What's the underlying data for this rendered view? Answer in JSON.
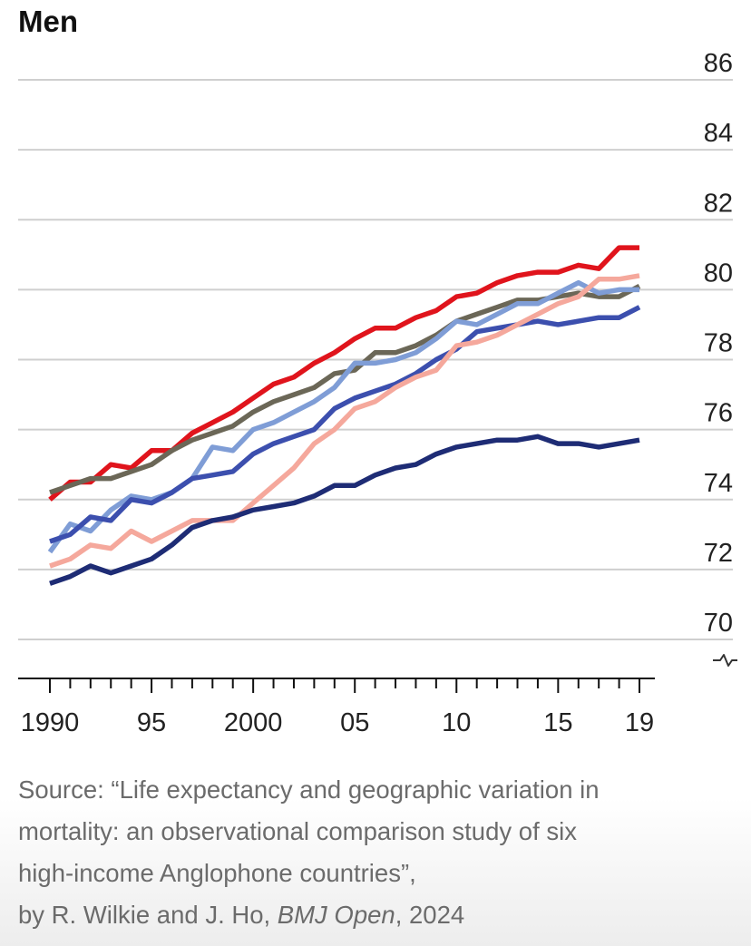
{
  "chart_data": {
    "type": "line",
    "title": "Men",
    "xlabel": "",
    "ylabel": "",
    "xlim": [
      1990,
      2019
    ],
    "ylim": [
      70,
      86
    ],
    "y_ticks": [
      70,
      72,
      74,
      76,
      78,
      80,
      82,
      84,
      86
    ],
    "x_ticks": [
      {
        "value": 1990,
        "label": "1990"
      },
      {
        "value": 1995,
        "label": "95"
      },
      {
        "value": 2000,
        "label": "2000"
      },
      {
        "value": 2005,
        "label": "05"
      },
      {
        "value": 2010,
        "label": "10"
      },
      {
        "value": 2015,
        "label": "15"
      },
      {
        "value": 2019,
        "label": "19"
      }
    ],
    "axis_break": true,
    "grid": true,
    "x": [
      1990,
      1991,
      1992,
      1993,
      1994,
      1995,
      1996,
      1997,
      1998,
      1999,
      2000,
      2001,
      2002,
      2003,
      2004,
      2005,
      2006,
      2007,
      2008,
      2009,
      2010,
      2011,
      2012,
      2013,
      2014,
      2015,
      2016,
      2017,
      2018,
      2019
    ],
    "series": [
      {
        "color": "#e0141c",
        "values": [
          74.0,
          74.5,
          74.5,
          75.0,
          74.9,
          75.4,
          75.4,
          75.9,
          76.2,
          76.5,
          76.9,
          77.3,
          77.5,
          77.9,
          78.2,
          78.6,
          78.9,
          78.9,
          79.2,
          79.4,
          79.8,
          79.9,
          80.2,
          80.4,
          80.5,
          80.5,
          80.7,
          80.6,
          81.2,
          81.2
        ]
      },
      {
        "color": "#6b6757",
        "values": [
          74.2,
          74.4,
          74.6,
          74.6,
          74.8,
          75.0,
          75.4,
          75.7,
          75.9,
          76.1,
          76.5,
          76.8,
          77.0,
          77.2,
          77.6,
          77.7,
          78.2,
          78.2,
          78.4,
          78.7,
          79.1,
          79.3,
          79.5,
          79.7,
          79.7,
          79.8,
          79.9,
          79.8,
          79.8,
          80.1
        ]
      },
      {
        "color": "#7f9dd6",
        "values": [
          72.5,
          73.3,
          73.1,
          73.7,
          74.1,
          74.0,
          74.2,
          74.6,
          75.5,
          75.4,
          76.0,
          76.2,
          76.5,
          76.8,
          77.2,
          77.9,
          77.9,
          78.0,
          78.2,
          78.6,
          79.1,
          79.0,
          79.3,
          79.6,
          79.6,
          79.9,
          80.2,
          79.9,
          80.0,
          80.0
        ]
      },
      {
        "color": "#3c4fae",
        "values": [
          72.8,
          73.0,
          73.5,
          73.4,
          74.0,
          73.9,
          74.2,
          74.6,
          74.7,
          74.8,
          75.3,
          75.6,
          75.8,
          76.0,
          76.6,
          76.9,
          77.1,
          77.3,
          77.6,
          78.0,
          78.3,
          78.8,
          78.9,
          79.0,
          79.1,
          79.0,
          79.1,
          79.2,
          79.2,
          79.5
        ]
      },
      {
        "color": "#f5a89c",
        "values": [
          72.1,
          72.3,
          72.7,
          72.6,
          73.1,
          72.8,
          73.1,
          73.4,
          73.4,
          73.4,
          73.9,
          74.4,
          74.9,
          75.6,
          76.0,
          76.6,
          76.8,
          77.2,
          77.5,
          77.7,
          78.4,
          78.5,
          78.7,
          79.0,
          79.3,
          79.6,
          79.8,
          80.3,
          80.3,
          80.4
        ]
      },
      {
        "color": "#1e2c75",
        "values": [
          71.6,
          71.8,
          72.1,
          71.9,
          72.1,
          72.3,
          72.7,
          73.2,
          73.4,
          73.5,
          73.7,
          73.8,
          73.9,
          74.1,
          74.4,
          74.4,
          74.7,
          74.9,
          75.0,
          75.3,
          75.5,
          75.6,
          75.7,
          75.7,
          75.8,
          75.6,
          75.6,
          75.5,
          75.6,
          75.7
        ]
      }
    ]
  },
  "source": {
    "line1": "Source: “Life expectancy and geographic variation in",
    "line2": "mortality: an observational comparison study of six",
    "line3": "high-income Anglophone countries”,",
    "line4_prefix": "by R. Wilkie and J. Ho, ",
    "line4_journal": "BMJ Open",
    "line4_suffix": ", 2024"
  }
}
